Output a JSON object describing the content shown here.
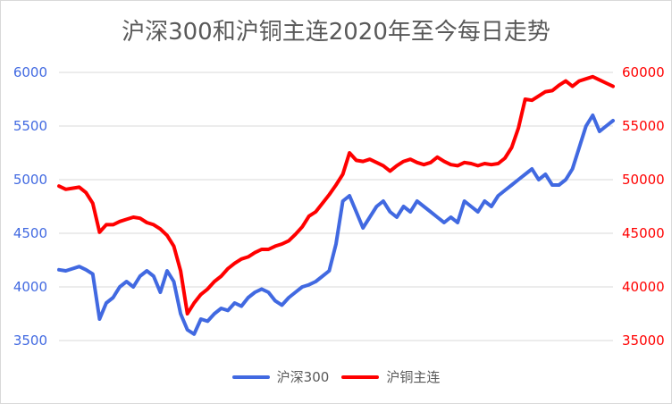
{
  "chart_data": {
    "type": "line",
    "title": "沪深300和沪铜主连2020年至今每日走势",
    "xlabel": "",
    "ylabel": "",
    "legend_position": "bottom",
    "grid": true,
    "y_left": {
      "ticks": [
        "6000",
        "5500",
        "5000",
        "4500",
        "4000",
        "3500"
      ],
      "ylim": [
        3500,
        6000
      ],
      "color": "#4169e1"
    },
    "y_right": {
      "ticks": [
        "60000",
        "55000",
        "50000",
        "45000",
        "40000",
        "35000"
      ],
      "ylim": [
        35000,
        60000
      ],
      "color": "#ff0000"
    },
    "series": [
      {
        "name": "沪深300",
        "axis": "left",
        "color": "#4169e1",
        "values": [
          4160,
          4150,
          4170,
          4190,
          4160,
          4120,
          3700,
          3850,
          3900,
          4000,
          4050,
          4000,
          4100,
          4150,
          4100,
          3950,
          4150,
          4050,
          3750,
          3600,
          3560,
          3700,
          3680,
          3750,
          3800,
          3780,
          3850,
          3820,
          3900,
          3950,
          3980,
          3950,
          3870,
          3830,
          3900,
          3950,
          4000,
          4020,
          4050,
          4100,
          4150,
          4400,
          4800,
          4850,
          4700,
          4550,
          4650,
          4750,
          4800,
          4700,
          4650,
          4750,
          4700,
          4800,
          4750,
          4700,
          4650,
          4600,
          4650,
          4600,
          4800,
          4750,
          4700,
          4800,
          4750,
          4850,
          4900,
          4950,
          5000,
          5050,
          5100,
          5000,
          5050,
          4950,
          4950,
          5000,
          5100,
          5300,
          5500,
          5600,
          5450,
          5500,
          5550
        ]
      },
      {
        "name": "沪铜主连",
        "axis": "right",
        "color": "#ff0000",
        "values": [
          49400,
          49100,
          49200,
          49300,
          48800,
          47800,
          45100,
          45800,
          45800,
          46100,
          46300,
          46500,
          46400,
          46000,
          45800,
          45400,
          44800,
          43800,
          41500,
          37500,
          38500,
          39300,
          39800,
          40500,
          41000,
          41700,
          42200,
          42600,
          42800,
          43200,
          43500,
          43500,
          43800,
          44000,
          44300,
          44900,
          45600,
          46600,
          47000,
          47800,
          48600,
          49500,
          50500,
          52500,
          51800,
          51700,
          51900,
          51600,
          51300,
          50800,
          51300,
          51700,
          51900,
          51600,
          51400,
          51600,
          52100,
          51700,
          51400,
          51300,
          51600,
          51500,
          51300,
          51500,
          51400,
          51500,
          52000,
          53000,
          54800,
          57500,
          57400,
          57800,
          58200,
          58300,
          58800,
          59200,
          58700,
          59200,
          59400,
          59600,
          59300,
          59000,
          58700
        ]
      }
    ]
  }
}
